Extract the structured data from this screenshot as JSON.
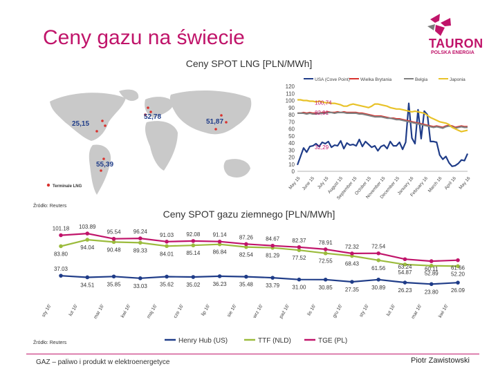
{
  "page": {
    "title": "Ceny gazu na świecie",
    "logo": {
      "name": "TAURON",
      "sub": "POLSKA ENERGIA"
    },
    "source_top": "Źródło: Reuters",
    "source_bottom": "Źródło: Reuters",
    "footer_left": "GAZ – paliwo i produkt w elektroenergetyce",
    "footer_right": "Piotr Zawistowski",
    "colors": {
      "accent": "#c0146a",
      "navy": "#1f3c88",
      "red": "#d9322e",
      "green": "#9bbb3c",
      "yellow": "#e8c228",
      "gray": "#808080"
    }
  },
  "map": {
    "labels": [
      "25,15",
      "52,78",
      "51,87",
      "55,39"
    ],
    "legend_label": "Terminale LNG"
  },
  "chart_data": [
    {
      "type": "line",
      "title": "Ceny SPOT LNG [PLN/MWh]",
      "legend": [
        "USA (Cove Point)",
        "Wielka Brytania",
        "Belgia",
        "Japonia"
      ],
      "x_labels": [
        "May 15",
        "June 15",
        "July 15",
        "August 15",
        "September 15",
        "October 15",
        "November 15",
        "December 15",
        "January 16",
        "February 16",
        "March 16",
        "April 16",
        "May 16"
      ],
      "y_ticks": [
        0,
        10,
        20,
        30,
        40,
        50,
        60,
        70,
        80,
        90,
        100,
        110,
        120
      ],
      "ylim": [
        0,
        120
      ],
      "annotations": [
        "100,74",
        "82,91",
        "32,29"
      ],
      "series": [
        {
          "name": "USA (Cove Point)",
          "color": "#1f3c88",
          "values": [
            9,
            21,
            33,
            27,
            35,
            36,
            39,
            35,
            41,
            39,
            42,
            34,
            37,
            36,
            43,
            32,
            40,
            37,
            38,
            36,
            45,
            35,
            42,
            38,
            34,
            36,
            29,
            35,
            37,
            32,
            42,
            36,
            36,
            41,
            31,
            41,
            96,
            47,
            39,
            87,
            46,
            85,
            80,
            42,
            42,
            41,
            23,
            17,
            21,
            12,
            7,
            8,
            11,
            16,
            15,
            25
          ]
        },
        {
          "name": "Wielka Brytania",
          "color": "#d9322e",
          "values": [
            82,
            82,
            83,
            82,
            83,
            82,
            82,
            82,
            83,
            83,
            84,
            83,
            83,
            84,
            83,
            84,
            83,
            83,
            83,
            83,
            82,
            82,
            81,
            80,
            79,
            78,
            78,
            78,
            77,
            76,
            75,
            75,
            74,
            74,
            73,
            72,
            71,
            70,
            69,
            68,
            67,
            66,
            65,
            64,
            63,
            64,
            63,
            62,
            64,
            65,
            64,
            62,
            63,
            64,
            63,
            63
          ]
        },
        {
          "name": "Belgia",
          "color": "#808080",
          "values": [
            82,
            82,
            82,
            81,
            82,
            81,
            81,
            82,
            82,
            82,
            83,
            83,
            82,
            83,
            83,
            83,
            82,
            82,
            82,
            82,
            81,
            81,
            80,
            79,
            78,
            77,
            77,
            77,
            76,
            75,
            75,
            74,
            73,
            73,
            72,
            71,
            70,
            69,
            68,
            67,
            66,
            65,
            64,
            63,
            62,
            63,
            62,
            61,
            63,
            64,
            63,
            61,
            62,
            63,
            62,
            62
          ]
        },
        {
          "name": "Japonia",
          "color": "#e8c228",
          "values": [
            101,
            101,
            100,
            100,
            99,
            99,
            98,
            99,
            98,
            97,
            97,
            96,
            96,
            95,
            94,
            92,
            92,
            94,
            95,
            94,
            93,
            92,
            91,
            90,
            92,
            95,
            95,
            94,
            93,
            92,
            90,
            89,
            88,
            88,
            87,
            86,
            85,
            84,
            85,
            84,
            83,
            82,
            79,
            76,
            74,
            72,
            70,
            69,
            68,
            66,
            62,
            60,
            58,
            56,
            57,
            58
          ]
        }
      ]
    },
    {
      "type": "line",
      "title": "Ceny SPOT gazu ziemnego [PLN/MWh]",
      "categories": [
        "sty 16'",
        "lut 16'",
        "mar 16'",
        "kwi 16'",
        "maj 16'",
        "cze 16'",
        "lip 16'",
        "sie 16'",
        "wrz 16'",
        "paź 16'",
        "lis 16'",
        "gru 16'",
        "sty 16'",
        "lut 16'",
        "mar 16'",
        "kwi 16'"
      ],
      "legend": [
        "Henry Hub (US)",
        "TTF (NLD)",
        "TGE (PL)"
      ],
      "series": [
        {
          "name": "Henry Hub (US)",
          "color": "#1f3c88",
          "values": [
            37.03,
            34.51,
            35.85,
            33.03,
            35.62,
            35.02,
            36.23,
            35.48,
            33.79,
            31.0,
            30.85,
            27.35,
            30.89,
            26.23,
            23.8,
            26.09
          ]
        },
        {
          "name": "TTF (NLD)",
          "color": "#9bbb3c",
          "values": [
            83.8,
            94.04,
            90.48,
            89.33,
            84.01,
            85.14,
            86.84,
            82.54,
            81.29,
            77.52,
            72.55,
            68.43,
            61.56,
            54.87,
            52.89,
            52.2
          ]
        },
        {
          "name": "TGE (PL)",
          "color": "#c0146a",
          "values": [
            101.18,
            103.89,
            95.54,
            96.24,
            91.03,
            92.08,
            91.14,
            87.26,
            84.67,
            82.37,
            78.91,
            72.32,
            72.54,
            63.24,
            60.11,
            61.66
          ]
        }
      ]
    }
  ]
}
